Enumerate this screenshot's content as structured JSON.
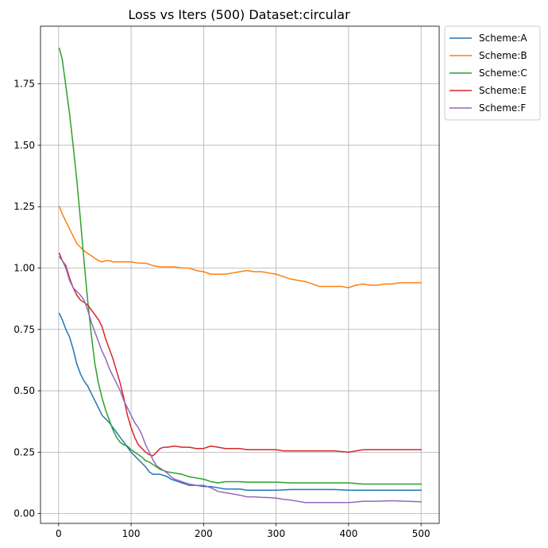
{
  "chart_data": {
    "type": "line",
    "title": "Loss vs Iters (500) Dataset:circular",
    "xlabel": "",
    "ylabel": "",
    "xlim": [
      -25,
      525
    ],
    "ylim": [
      -0.04,
      1.985
    ],
    "xticks": [
      0,
      100,
      200,
      300,
      400,
      500
    ],
    "yticks": [
      0.0,
      0.25,
      0.5,
      0.75,
      1.0,
      1.25,
      1.5,
      1.75
    ],
    "ytick_labels": [
      "0.00",
      "0.25",
      "0.50",
      "0.75",
      "1.00",
      "1.25",
      "1.50",
      "1.75"
    ],
    "xtick_labels": [
      "0",
      "100",
      "200",
      "300",
      "400",
      "500"
    ],
    "grid": true,
    "legend_position": "outside-top-right",
    "series": [
      {
        "name": "Scheme:A",
        "color": "#1f77b4",
        "points": [
          [
            1,
            0.815
          ],
          [
            5,
            0.79
          ],
          [
            10,
            0.75
          ],
          [
            15,
            0.72
          ],
          [
            20,
            0.67
          ],
          [
            25,
            0.61
          ],
          [
            30,
            0.57
          ],
          [
            35,
            0.54
          ],
          [
            40,
            0.52
          ],
          [
            45,
            0.49
          ],
          [
            50,
            0.46
          ],
          [
            55,
            0.43
          ],
          [
            60,
            0.4
          ],
          [
            65,
            0.385
          ],
          [
            70,
            0.37
          ],
          [
            75,
            0.35
          ],
          [
            80,
            0.33
          ],
          [
            85,
            0.31
          ],
          [
            90,
            0.29
          ],
          [
            95,
            0.27
          ],
          [
            100,
            0.25
          ],
          [
            105,
            0.235
          ],
          [
            110,
            0.22
          ],
          [
            115,
            0.205
          ],
          [
            120,
            0.19
          ],
          [
            125,
            0.17
          ],
          [
            130,
            0.16
          ],
          [
            135,
            0.16
          ],
          [
            140,
            0.16
          ],
          [
            145,
            0.155
          ],
          [
            150,
            0.15
          ],
          [
            155,
            0.14
          ],
          [
            160,
            0.135
          ],
          [
            165,
            0.13
          ],
          [
            170,
            0.125
          ],
          [
            175,
            0.12
          ],
          [
            180,
            0.115
          ],
          [
            190,
            0.115
          ],
          [
            200,
            0.11
          ],
          [
            210,
            0.11
          ],
          [
            220,
            0.105
          ],
          [
            230,
            0.1
          ],
          [
            240,
            0.1
          ],
          [
            250,
            0.1
          ],
          [
            260,
            0.095
          ],
          [
            270,
            0.095
          ],
          [
            280,
            0.095
          ],
          [
            290,
            0.095
          ],
          [
            300,
            0.095
          ],
          [
            320,
            0.098
          ],
          [
            340,
            0.098
          ],
          [
            360,
            0.098
          ],
          [
            380,
            0.098
          ],
          [
            400,
            0.095
          ],
          [
            420,
            0.095
          ],
          [
            440,
            0.095
          ],
          [
            460,
            0.095
          ],
          [
            480,
            0.095
          ],
          [
            500,
            0.095
          ]
        ]
      },
      {
        "name": "Scheme:B",
        "color": "#ff7f0e",
        "points": [
          [
            1,
            1.25
          ],
          [
            5,
            1.22
          ],
          [
            10,
            1.19
          ],
          [
            15,
            1.16
          ],
          [
            20,
            1.13
          ],
          [
            25,
            1.1
          ],
          [
            30,
            1.085
          ],
          [
            35,
            1.07
          ],
          [
            40,
            1.06
          ],
          [
            45,
            1.05
          ],
          [
            50,
            1.04
          ],
          [
            55,
            1.03
          ],
          [
            60,
            1.025
          ],
          [
            65,
            1.03
          ],
          [
            70,
            1.03
          ],
          [
            75,
            1.025
          ],
          [
            80,
            1.025
          ],
          [
            90,
            1.025
          ],
          [
            100,
            1.025
          ],
          [
            110,
            1.02
          ],
          [
            120,
            1.02
          ],
          [
            130,
            1.01
          ],
          [
            140,
            1.005
          ],
          [
            150,
            1.005
          ],
          [
            160,
            1.005
          ],
          [
            170,
            1.0
          ],
          [
            180,
            1.0
          ],
          [
            190,
            0.99
          ],
          [
            200,
            0.985
          ],
          [
            210,
            0.975
          ],
          [
            220,
            0.975
          ],
          [
            230,
            0.975
          ],
          [
            240,
            0.98
          ],
          [
            250,
            0.985
          ],
          [
            260,
            0.99
          ],
          [
            270,
            0.985
          ],
          [
            280,
            0.985
          ],
          [
            290,
            0.98
          ],
          [
            300,
            0.975
          ],
          [
            310,
            0.965
          ],
          [
            320,
            0.955
          ],
          [
            330,
            0.95
          ],
          [
            340,
            0.945
          ],
          [
            350,
            0.935
          ],
          [
            360,
            0.925
          ],
          [
            370,
            0.925
          ],
          [
            380,
            0.925
          ],
          [
            390,
            0.925
          ],
          [
            400,
            0.92
          ],
          [
            410,
            0.93
          ],
          [
            420,
            0.935
          ],
          [
            430,
            0.93
          ],
          [
            440,
            0.93
          ],
          [
            450,
            0.935
          ],
          [
            460,
            0.935
          ],
          [
            470,
            0.94
          ],
          [
            480,
            0.94
          ],
          [
            490,
            0.94
          ],
          [
            500,
            0.94
          ]
        ]
      },
      {
        "name": "Scheme:C",
        "color": "#2ca02c",
        "points": [
          [
            1,
            1.895
          ],
          [
            5,
            1.85
          ],
          [
            10,
            1.74
          ],
          [
            15,
            1.63
          ],
          [
            20,
            1.5
          ],
          [
            25,
            1.36
          ],
          [
            30,
            1.2
          ],
          [
            35,
            1.03
          ],
          [
            40,
            0.87
          ],
          [
            45,
            0.73
          ],
          [
            50,
            0.61
          ],
          [
            55,
            0.53
          ],
          [
            60,
            0.47
          ],
          [
            65,
            0.42
          ],
          [
            70,
            0.38
          ],
          [
            75,
            0.34
          ],
          [
            80,
            0.31
          ],
          [
            85,
            0.29
          ],
          [
            90,
            0.28
          ],
          [
            95,
            0.275
          ],
          [
            100,
            0.26
          ],
          [
            105,
            0.25
          ],
          [
            110,
            0.24
          ],
          [
            115,
            0.23
          ],
          [
            120,
            0.215
          ],
          [
            125,
            0.21
          ],
          [
            130,
            0.2
          ],
          [
            135,
            0.19
          ],
          [
            140,
            0.18
          ],
          [
            145,
            0.175
          ],
          [
            150,
            0.17
          ],
          [
            160,
            0.165
          ],
          [
            170,
            0.16
          ],
          [
            180,
            0.15
          ],
          [
            190,
            0.145
          ],
          [
            200,
            0.14
          ],
          [
            210,
            0.13
          ],
          [
            220,
            0.125
          ],
          [
            230,
            0.13
          ],
          [
            240,
            0.13
          ],
          [
            250,
            0.13
          ],
          [
            260,
            0.128
          ],
          [
            270,
            0.128
          ],
          [
            280,
            0.128
          ],
          [
            290,
            0.128
          ],
          [
            300,
            0.128
          ],
          [
            320,
            0.125
          ],
          [
            340,
            0.125
          ],
          [
            360,
            0.125
          ],
          [
            380,
            0.125
          ],
          [
            400,
            0.125
          ],
          [
            420,
            0.12
          ],
          [
            440,
            0.12
          ],
          [
            460,
            0.12
          ],
          [
            480,
            0.12
          ],
          [
            500,
            0.12
          ]
        ]
      },
      {
        "name": "Scheme:E",
        "color": "#d62728",
        "points": [
          [
            1,
            1.06
          ],
          [
            5,
            1.03
          ],
          [
            10,
            1.01
          ],
          [
            15,
            0.96
          ],
          [
            20,
            0.92
          ],
          [
            25,
            0.89
          ],
          [
            30,
            0.87
          ],
          [
            35,
            0.86
          ],
          [
            40,
            0.85
          ],
          [
            45,
            0.83
          ],
          [
            50,
            0.81
          ],
          [
            55,
            0.79
          ],
          [
            60,
            0.76
          ],
          [
            65,
            0.71
          ],
          [
            70,
            0.67
          ],
          [
            75,
            0.63
          ],
          [
            80,
            0.58
          ],
          [
            85,
            0.53
          ],
          [
            90,
            0.47
          ],
          [
            95,
            0.4
          ],
          [
            100,
            0.35
          ],
          [
            105,
            0.31
          ],
          [
            110,
            0.28
          ],
          [
            115,
            0.265
          ],
          [
            120,
            0.25
          ],
          [
            125,
            0.24
          ],
          [
            130,
            0.235
          ],
          [
            135,
            0.25
          ],
          [
            140,
            0.265
          ],
          [
            145,
            0.27
          ],
          [
            150,
            0.27
          ],
          [
            160,
            0.275
          ],
          [
            170,
            0.27
          ],
          [
            180,
            0.27
          ],
          [
            190,
            0.265
          ],
          [
            200,
            0.265
          ],
          [
            210,
            0.275
          ],
          [
            220,
            0.27
          ],
          [
            230,
            0.265
          ],
          [
            240,
            0.265
          ],
          [
            250,
            0.265
          ],
          [
            260,
            0.26
          ],
          [
            270,
            0.26
          ],
          [
            280,
            0.26
          ],
          [
            290,
            0.26
          ],
          [
            300,
            0.26
          ],
          [
            310,
            0.255
          ],
          [
            320,
            0.255
          ],
          [
            340,
            0.255
          ],
          [
            360,
            0.255
          ],
          [
            380,
            0.255
          ],
          [
            400,
            0.25
          ],
          [
            410,
            0.255
          ],
          [
            420,
            0.26
          ],
          [
            440,
            0.26
          ],
          [
            460,
            0.26
          ],
          [
            480,
            0.26
          ],
          [
            500,
            0.26
          ]
        ]
      },
      {
        "name": "Scheme:F",
        "color": "#9467bd",
        "points": [
          [
            1,
            1.045
          ],
          [
            5,
            1.03
          ],
          [
            10,
            1.0
          ],
          [
            15,
            0.95
          ],
          [
            20,
            0.92
          ],
          [
            25,
            0.905
          ],
          [
            30,
            0.89
          ],
          [
            35,
            0.87
          ],
          [
            40,
            0.83
          ],
          [
            45,
            0.78
          ],
          [
            50,
            0.74
          ],
          [
            55,
            0.7
          ],
          [
            60,
            0.66
          ],
          [
            65,
            0.63
          ],
          [
            70,
            0.59
          ],
          [
            75,
            0.56
          ],
          [
            80,
            0.53
          ],
          [
            85,
            0.5
          ],
          [
            90,
            0.46
          ],
          [
            95,
            0.43
          ],
          [
            100,
            0.4
          ],
          [
            105,
            0.37
          ],
          [
            110,
            0.35
          ],
          [
            115,
            0.32
          ],
          [
            120,
            0.28
          ],
          [
            125,
            0.25
          ],
          [
            130,
            0.22
          ],
          [
            135,
            0.195
          ],
          [
            140,
            0.185
          ],
          [
            145,
            0.175
          ],
          [
            150,
            0.165
          ],
          [
            155,
            0.15
          ],
          [
            160,
            0.14
          ],
          [
            170,
            0.13
          ],
          [
            180,
            0.12
          ],
          [
            190,
            0.115
          ],
          [
            200,
            0.115
          ],
          [
            210,
            0.105
          ],
          [
            220,
            0.09
          ],
          [
            230,
            0.085
          ],
          [
            240,
            0.08
          ],
          [
            250,
            0.075
          ],
          [
            260,
            0.068
          ],
          [
            270,
            0.068
          ],
          [
            280,
            0.066
          ],
          [
            290,
            0.065
          ],
          [
            300,
            0.063
          ],
          [
            310,
            0.058
          ],
          [
            320,
            0.055
          ],
          [
            330,
            0.05
          ],
          [
            340,
            0.045
          ],
          [
            350,
            0.045
          ],
          [
            360,
            0.045
          ],
          [
            380,
            0.045
          ],
          [
            400,
            0.045
          ],
          [
            410,
            0.047
          ],
          [
            420,
            0.05
          ],
          [
            440,
            0.05
          ],
          [
            460,
            0.052
          ],
          [
            480,
            0.05
          ],
          [
            500,
            0.048
          ]
        ]
      }
    ]
  }
}
